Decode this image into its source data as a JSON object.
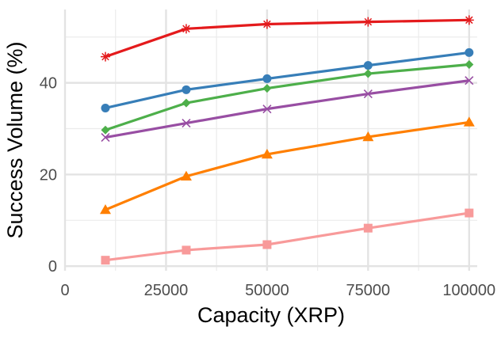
{
  "chart_data": {
    "type": "line",
    "xlabel": "Capacity (XRP)",
    "ylabel": "Success Volume (%)",
    "xlim": [
      0,
      102000
    ],
    "ylim": [
      -1,
      56
    ],
    "x_ticks": [
      0,
      25000,
      50000,
      75000,
      100000
    ],
    "x_tick_labels": [
      "0",
      "25000",
      "50000",
      "75000",
      "100000"
    ],
    "y_ticks": [
      0,
      20,
      40
    ],
    "y_tick_labels": [
      "0",
      "20",
      "40"
    ],
    "grid": true,
    "legend": "none",
    "x": [
      10000,
      30000,
      50000,
      75000,
      100000
    ],
    "series": [
      {
        "color": "#e41a1c",
        "marker": "star",
        "values": [
          45.7,
          51.8,
          52.8,
          53.3,
          53.7
        ]
      },
      {
        "color": "#377eb8",
        "marker": "circle",
        "values": [
          34.5,
          38.5,
          40.9,
          43.8,
          46.6
        ]
      },
      {
        "color": "#4daf4a",
        "marker": "diamond",
        "values": [
          29.7,
          35.6,
          38.8,
          42.0,
          44.0
        ]
      },
      {
        "color": "#984ea3",
        "marker": "x",
        "values": [
          28.1,
          31.2,
          34.3,
          37.6,
          40.5
        ]
      },
      {
        "color": "#ff7f00",
        "marker": "triangle",
        "values": [
          12.3,
          19.6,
          24.4,
          28.2,
          31.4
        ]
      },
      {
        "color": "#f89a9a",
        "marker": "square",
        "values": [
          1.3,
          3.5,
          4.7,
          8.3,
          11.6
        ]
      }
    ]
  }
}
